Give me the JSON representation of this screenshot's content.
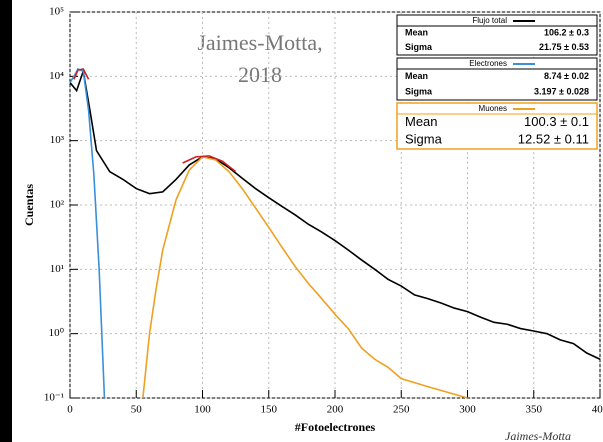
{
  "chart_data": {
    "type": "line",
    "annotation": [
      "Jaimes-Motta,",
      "2018"
    ],
    "credit": "Jaimes-Motta",
    "xlabel": "#Fotoelectrones",
    "ylabel": "Cuentas",
    "xlim": [
      0,
      400
    ],
    "xticks": [
      0,
      50,
      100,
      150,
      200,
      250,
      300,
      350,
      400
    ],
    "ylim": [
      0.1,
      100000
    ],
    "log_y": true,
    "grid": true,
    "yticks": [
      {
        "value": 0.1,
        "label": "10⁻¹"
      },
      {
        "value": 1,
        "label": "10⁰"
      },
      {
        "value": 10,
        "label": "10¹"
      },
      {
        "value": 100,
        "label": "10²"
      },
      {
        "value": 1000,
        "label": "10³"
      },
      {
        "value": 10000,
        "label": "10⁴"
      },
      {
        "value": 100000,
        "label": "10⁵"
      }
    ],
    "series": [
      {
        "name": "Flujo total",
        "color": "#000000",
        "x": [
          0,
          5,
          10,
          15,
          20,
          30,
          40,
          50,
          60,
          70,
          80,
          90,
          100,
          110,
          120,
          130,
          140,
          150,
          160,
          170,
          180,
          190,
          200,
          210,
          220,
          230,
          240,
          250,
          260,
          270,
          280,
          290,
          300,
          310,
          320,
          330,
          340,
          350,
          360,
          370,
          380,
          390,
          400
        ],
        "values": [
          8000,
          6000,
          12000,
          3000,
          700,
          330,
          250,
          180,
          150,
          160,
          250,
          420,
          560,
          520,
          380,
          260,
          180,
          130,
          95,
          70,
          50,
          38,
          28,
          20,
          14,
          10,
          7,
          5.5,
          4,
          3.5,
          3,
          2.5,
          2.2,
          1.8,
          1.5,
          1.4,
          1.2,
          1.1,
          1,
          0.8,
          0.7,
          0.5,
          0.4
        ],
        "stats": [
          [
            "Mean",
            "106.2 ± 0.3"
          ],
          [
            "Sigma",
            "21.75 ± 0.53"
          ]
        ]
      },
      {
        "name": "Electrones",
        "color": "#3a8fd9",
        "x": [
          0,
          3,
          6,
          10,
          14,
          18,
          22,
          26
        ],
        "values": [
          8000,
          10000,
          13000,
          12000,
          3000,
          300,
          10,
          0.1
        ],
        "stats": [
          [
            "Mean",
            "8.74 ± 0.02"
          ],
          [
            "Sigma",
            "3.197 ± 0.028"
          ]
        ]
      },
      {
        "name": "Muones",
        "color": "#f0a020",
        "x": [
          55,
          60,
          65,
          70,
          80,
          90,
          100,
          110,
          120,
          130,
          140,
          150,
          160,
          170,
          180,
          190,
          200,
          210,
          220,
          230,
          240,
          250,
          270,
          300
        ],
        "values": [
          0.1,
          1,
          5,
          20,
          120,
          350,
          560,
          500,
          330,
          180,
          90,
          45,
          22,
          11,
          6,
          3.5,
          2,
          1.2,
          0.6,
          0.4,
          0.3,
          0.2,
          0.15,
          0.1
        ],
        "stats": [
          [
            "Mean",
            "100.3 ± 0.1"
          ],
          [
            "Sigma",
            "12.52 ± 0.11"
          ]
        ]
      }
    ],
    "fits": [
      {
        "color": "#d02020",
        "x": [
          3,
          6,
          10,
          14
        ],
        "values": [
          9000,
          12500,
          13000,
          9000
        ]
      },
      {
        "color": "#d02020",
        "x": [
          85,
          95,
          105,
          115,
          125
        ],
        "values": [
          450,
          560,
          580,
          480,
          330
        ]
      }
    ]
  }
}
